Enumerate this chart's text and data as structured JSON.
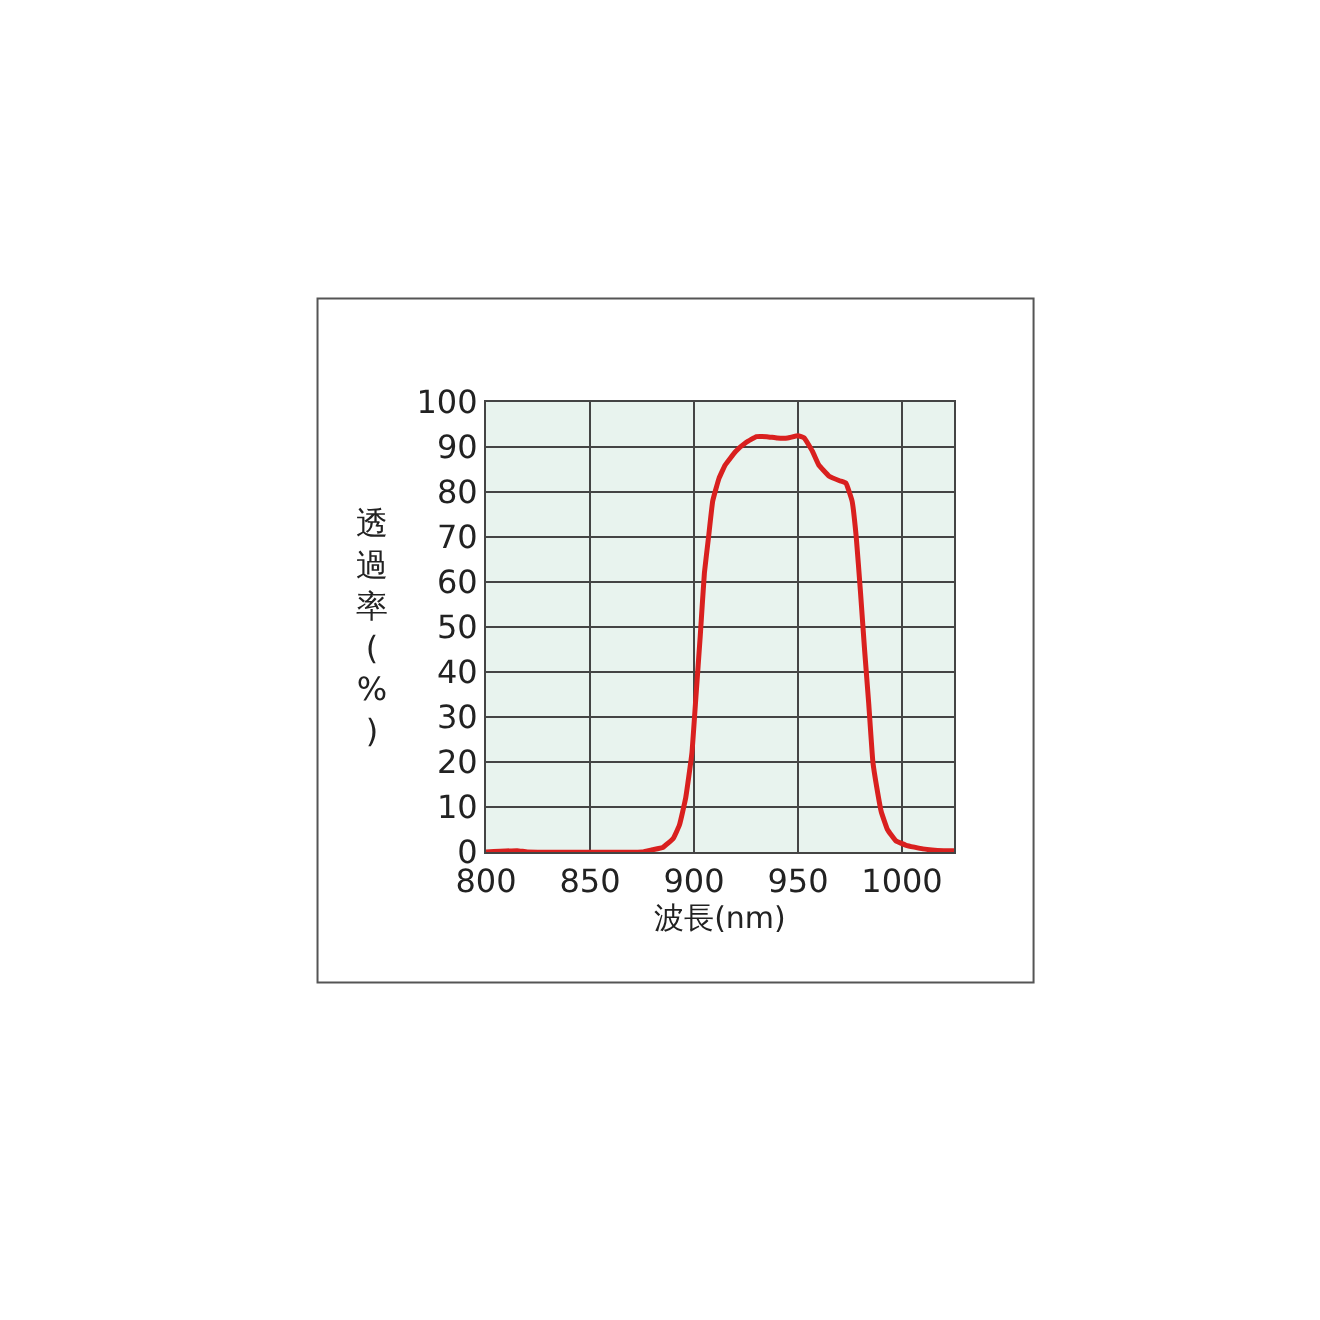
{
  "chart_data": {
    "type": "line",
    "xlabel": "波長(nm)",
    "ylabel": "透過率(%)",
    "x": [
      800,
      815,
      820,
      875,
      880,
      885,
      890,
      893,
      896,
      899,
      901,
      903,
      905,
      907,
      909,
      912,
      915,
      920,
      925,
      930,
      935,
      940,
      945,
      950,
      953,
      957,
      960,
      965,
      970,
      973,
      976,
      978,
      980,
      982,
      984,
      986,
      988,
      990,
      993,
      997,
      1002,
      1010,
      1020,
      1025
    ],
    "series": [
      {
        "color": "#d9201f",
        "values": [
          0,
          0.3,
          0,
          0,
          0.5,
          1,
          3,
          6,
          12,
          22,
          35,
          48,
          62,
          70,
          78,
          83,
          86,
          89,
          91,
          92.3,
          92.3,
          92,
          92,
          92.5,
          92,
          89,
          86,
          83.5,
          82.5,
          82,
          78,
          70,
          58,
          45,
          33,
          20,
          14,
          9,
          5,
          2.5,
          1.5,
          0.7,
          0.3,
          0.3
        ]
      }
    ],
    "xlim": [
      800,
      1025
    ],
    "xticks": [
      800,
      850,
      900,
      950,
      1000
    ],
    "ylim": [
      0,
      100
    ],
    "yticks": [
      0,
      10,
      20,
      30,
      40,
      50,
      60,
      70,
      80,
      90,
      100
    ],
    "grid": true,
    "legend": false,
    "marker": "none",
    "line_style": "solid"
  }
}
